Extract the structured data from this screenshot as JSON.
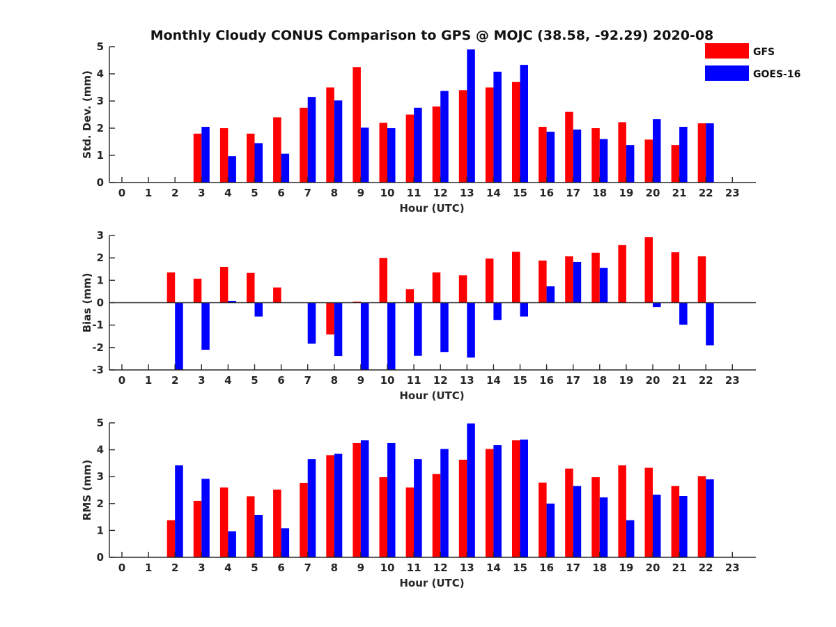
{
  "chart_data": {
    "title": "Monthly Cloudy CONUS Comparison to GPS @ MOJC (38.58, -92.29) 2020-08",
    "type": "bar",
    "categories": [
      0,
      1,
      2,
      3,
      4,
      5,
      6,
      7,
      8,
      9,
      10,
      11,
      12,
      13,
      14,
      15,
      16,
      17,
      18,
      19,
      20,
      21,
      22,
      23
    ],
    "legend": [
      {
        "name": "GFS",
        "color": "#ff0000"
      },
      {
        "name": "GOES-16",
        "color": "#0000ff"
      }
    ],
    "legend_position": "top-right",
    "panels": [
      {
        "id": "std",
        "ylabel": "Std. Dev. (mm)",
        "xlabel": "Hour (UTC)",
        "ylim": [
          0,
          5
        ],
        "yticks": [
          0,
          1,
          2,
          3,
          4,
          5
        ],
        "zero_line": false,
        "series": [
          {
            "name": "GFS",
            "color": "#ff0000",
            "values": [
              null,
              null,
              null,
              1.8,
              2.0,
              1.8,
              2.4,
              2.75,
              3.5,
              4.25,
              2.2,
              2.5,
              2.8,
              3.4,
              3.5,
              3.7,
              2.05,
              2.6,
              2.0,
              2.22,
              1.58,
              1.38,
              2.18,
              null
            ]
          },
          {
            "name": "GOES-16",
            "color": "#0000ff",
            "values": [
              null,
              null,
              null,
              2.05,
              0.97,
              1.45,
              1.06,
              3.15,
              3.02,
              2.02,
              2.0,
              2.75,
              3.37,
              4.9,
              4.08,
              4.33,
              1.87,
              1.95,
              1.6,
              1.38,
              2.33,
              2.05,
              2.18,
              null
            ]
          }
        ]
      },
      {
        "id": "bias",
        "ylabel": "Bias (mm)",
        "xlabel": "Hour (UTC)",
        "ylim": [
          -3,
          3
        ],
        "yticks": [
          -3,
          -2,
          -1,
          0,
          1,
          2,
          3
        ],
        "zero_line": true,
        "series": [
          {
            "name": "GFS",
            "color": "#ff0000",
            "values": [
              null,
              null,
              1.35,
              1.07,
              1.6,
              1.33,
              0.68,
              0.0,
              -1.42,
              0.05,
              2.0,
              0.6,
              1.35,
              1.22,
              1.97,
              2.27,
              1.88,
              2.07,
              2.23,
              2.57,
              2.93,
              2.25,
              2.07,
              null
            ]
          },
          {
            "name": "GOES-16",
            "color": "#0000ff",
            "values": [
              null,
              null,
              -3.0,
              -2.1,
              0.08,
              -0.62,
              0.0,
              -1.83,
              -2.38,
              -3.0,
              -3.0,
              -2.37,
              -2.2,
              -2.45,
              -0.77,
              -0.62,
              0.73,
              1.82,
              1.55,
              0.0,
              -0.2,
              -0.98,
              -1.9,
              null
            ]
          }
        ]
      },
      {
        "id": "rms",
        "ylabel": "RMS (mm)",
        "xlabel": "Hour (UTC)",
        "ylim": [
          0,
          5
        ],
        "yticks": [
          0,
          1,
          2,
          3,
          4,
          5
        ],
        "zero_line": false,
        "series": [
          {
            "name": "GFS",
            "color": "#ff0000",
            "values": [
              null,
              null,
              1.38,
              2.1,
              2.6,
              2.27,
              2.52,
              2.77,
              3.8,
              4.25,
              2.98,
              2.6,
              3.1,
              3.63,
              4.03,
              4.35,
              2.78,
              3.3,
              2.98,
              3.42,
              3.33,
              2.65,
              3.02,
              null
            ]
          },
          {
            "name": "GOES-16",
            "color": "#0000ff",
            "values": [
              null,
              null,
              3.42,
              2.92,
              0.97,
              1.58,
              1.08,
              3.65,
              3.85,
              4.35,
              4.25,
              3.65,
              4.03,
              4.98,
              4.17,
              4.38,
              2.0,
              2.65,
              2.23,
              1.38,
              2.33,
              2.28,
              2.9,
              null
            ]
          }
        ]
      }
    ]
  }
}
